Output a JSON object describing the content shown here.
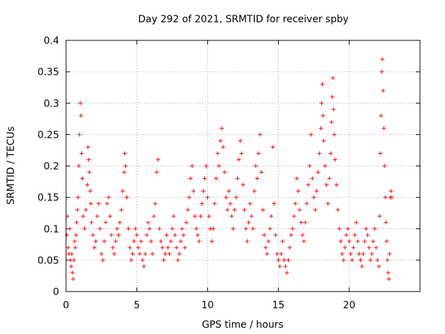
{
  "chart_data": {
    "type": "scatter",
    "title": "Day 292 of 2021, SRMTID for receiver spby",
    "xlabel": "GPS time / hours",
    "ylabel": "SRMTID / TECUs",
    "xlim": [
      0,
      25
    ],
    "ylim": [
      0,
      0.4
    ],
    "xticks": [
      0,
      5,
      10,
      15,
      20
    ],
    "xtick_labels": [
      "0",
      "5",
      "10",
      "15",
      "20"
    ],
    "yticks": [
      0,
      0.05,
      0.1,
      0.15,
      0.2,
      0.25,
      0.3,
      0.35,
      0.4
    ],
    "ytick_labels": [
      "0",
      "0.05",
      "0.1",
      "0.15",
      "0.2",
      "0.25",
      "0.3",
      "0.35",
      "0.4"
    ],
    "grid": true,
    "marker": "+",
    "color": "#ff0000",
    "series": [
      {
        "name": "SRMTID",
        "points": [
          [
            0.05,
            0.09
          ],
          [
            0.1,
            0.12
          ],
          [
            0.15,
            0.07
          ],
          [
            0.2,
            0.06
          ],
          [
            0.25,
            0.1
          ],
          [
            0.3,
            0.05
          ],
          [
            0.35,
            0.04
          ],
          [
            0.4,
            0.06
          ],
          [
            0.45,
            0.03
          ],
          [
            0.5,
            0.02
          ],
          [
            0.55,
            0.05
          ],
          [
            0.6,
            0.08
          ],
          [
            0.65,
            0.07
          ],
          [
            0.7,
            0.09
          ],
          [
            0.75,
            0.11
          ],
          [
            0.8,
            0.13
          ],
          [
            0.85,
            0.15
          ],
          [
            0.9,
            0.2
          ],
          [
            0.95,
            0.25
          ],
          [
            1.0,
            0.3
          ],
          [
            1.05,
            0.28
          ],
          [
            1.1,
            0.22
          ],
          [
            1.15,
            0.18
          ],
          [
            1.2,
            0.12
          ],
          [
            1.3,
            0.1
          ],
          [
            1.4,
            0.13
          ],
          [
            1.5,
            0.17
          ],
          [
            1.55,
            0.23
          ],
          [
            1.6,
            0.21
          ],
          [
            1.65,
            0.19
          ],
          [
            1.7,
            0.16
          ],
          [
            1.75,
            0.14
          ],
          [
            1.8,
            0.11
          ],
          [
            1.9,
            0.09
          ],
          [
            2.0,
            0.07
          ],
          [
            2.1,
            0.08
          ],
          [
            2.2,
            0.12
          ],
          [
            2.3,
            0.14
          ],
          [
            2.4,
            0.1
          ],
          [
            2.5,
            0.06
          ],
          [
            2.6,
            0.05
          ],
          [
            2.7,
            0.08
          ],
          [
            2.8,
            0.11
          ],
          [
            2.9,
            0.14
          ],
          [
            3.0,
            0.15
          ],
          [
            3.1,
            0.12
          ],
          [
            3.2,
            0.09
          ],
          [
            3.3,
            0.07
          ],
          [
            3.4,
            0.06
          ],
          [
            3.5,
            0.08
          ],
          [
            3.6,
            0.1
          ],
          [
            3.7,
            0.09
          ],
          [
            3.8,
            0.11
          ],
          [
            3.9,
            0.13
          ],
          [
            4.0,
            0.16
          ],
          [
            4.1,
            0.19
          ],
          [
            4.15,
            0.22
          ],
          [
            4.2,
            0.2
          ],
          [
            4.3,
            0.15
          ],
          [
            4.4,
            0.1
          ],
          [
            4.5,
            0.07
          ],
          [
            4.6,
            0.05
          ],
          [
            4.7,
            0.06
          ],
          [
            4.8,
            0.08
          ],
          [
            4.9,
            0.1
          ],
          [
            5.0,
            0.09
          ],
          [
            5.1,
            0.07
          ],
          [
            5.2,
            0.06
          ],
          [
            5.3,
            0.08
          ],
          [
            5.4,
            0.05
          ],
          [
            5.5,
            0.04
          ],
          [
            5.6,
            0.06
          ],
          [
            5.7,
            0.09
          ],
          [
            5.8,
            0.11
          ],
          [
            5.9,
            0.1
          ],
          [
            6.0,
            0.08
          ],
          [
            6.1,
            0.06
          ],
          [
            6.2,
            0.12
          ],
          [
            6.3,
            0.14
          ],
          [
            6.4,
            0.19
          ],
          [
            6.5,
            0.21
          ],
          [
            6.6,
            0.1
          ],
          [
            6.7,
            0.08
          ],
          [
            6.8,
            0.07
          ],
          [
            6.9,
            0.05
          ],
          [
            7.0,
            0.06
          ],
          [
            7.1,
            0.09
          ],
          [
            7.2,
            0.07
          ],
          [
            7.3,
            0.06
          ],
          [
            7.4,
            0.08
          ],
          [
            7.5,
            0.1
          ],
          [
            7.6,
            0.12
          ],
          [
            7.7,
            0.09
          ],
          [
            7.8,
            0.07
          ],
          [
            7.9,
            0.05
          ],
          [
            8.0,
            0.06
          ],
          [
            8.1,
            0.08
          ],
          [
            8.2,
            0.1
          ],
          [
            8.3,
            0.09
          ],
          [
            8.4,
            0.07
          ],
          [
            8.5,
            0.11
          ],
          [
            8.6,
            0.13
          ],
          [
            8.7,
            0.15
          ],
          [
            8.8,
            0.18
          ],
          [
            8.9,
            0.2
          ],
          [
            9.0,
            0.16
          ],
          [
            9.1,
            0.12
          ],
          [
            9.2,
            0.1
          ],
          [
            9.3,
            0.09
          ],
          [
            9.4,
            0.08
          ],
          [
            9.5,
            0.12
          ],
          [
            9.6,
            0.14
          ],
          [
            9.7,
            0.16
          ],
          [
            9.8,
            0.18
          ],
          [
            9.9,
            0.2
          ],
          [
            10.0,
            0.15
          ],
          [
            10.1,
            0.12
          ],
          [
            10.2,
            0.1
          ],
          [
            10.3,
            0.08
          ],
          [
            10.4,
            0.1
          ],
          [
            10.5,
            0.14
          ],
          [
            10.6,
            0.18
          ],
          [
            10.7,
            0.22
          ],
          [
            10.8,
            0.2
          ],
          [
            10.9,
            0.24
          ],
          [
            11.0,
            0.26
          ],
          [
            11.1,
            0.23
          ],
          [
            11.2,
            0.19
          ],
          [
            11.3,
            0.15
          ],
          [
            11.4,
            0.13
          ],
          [
            11.5,
            0.16
          ],
          [
            11.6,
            0.14
          ],
          [
            11.7,
            0.12
          ],
          [
            11.8,
            0.1
          ],
          [
            11.9,
            0.13
          ],
          [
            12.0,
            0.15
          ],
          [
            12.1,
            0.18
          ],
          [
            12.2,
            0.21
          ],
          [
            12.3,
            0.24
          ],
          [
            12.4,
            0.22
          ],
          [
            12.5,
            0.17
          ],
          [
            12.6,
            0.13
          ],
          [
            12.7,
            0.1
          ],
          [
            12.8,
            0.08
          ],
          [
            12.9,
            0.11
          ],
          [
            13.0,
            0.14
          ],
          [
            13.1,
            0.12
          ],
          [
            13.2,
            0.1
          ],
          [
            13.3,
            0.16
          ],
          [
            13.4,
            0.2
          ],
          [
            13.5,
            0.18
          ],
          [
            13.6,
            0.22
          ],
          [
            13.7,
            0.25
          ],
          [
            13.8,
            0.19
          ],
          [
            13.9,
            0.13
          ],
          [
            14.0,
            0.09
          ],
          [
            14.1,
            0.07
          ],
          [
            14.2,
            0.06
          ],
          [
            14.3,
            0.08
          ],
          [
            14.4,
            0.1
          ],
          [
            14.5,
            0.12
          ],
          [
            14.6,
            0.23
          ],
          [
            14.7,
            0.14
          ],
          [
            14.8,
            0.09
          ],
          [
            14.9,
            0.06
          ],
          [
            15.0,
            0.05
          ],
          [
            15.1,
            0.04
          ],
          [
            15.2,
            0.06
          ],
          [
            15.3,
            0.08
          ],
          [
            15.4,
            0.05
          ],
          [
            15.5,
            0.04
          ],
          [
            15.6,
            0.03
          ],
          [
            15.7,
            0.05
          ],
          [
            15.8,
            0.07
          ],
          [
            15.9,
            0.09
          ],
          [
            16.0,
            0.1
          ],
          [
            16.1,
            0.12
          ],
          [
            16.2,
            0.14
          ],
          [
            16.3,
            0.18
          ],
          [
            16.4,
            0.16
          ],
          [
            16.5,
            0.13
          ],
          [
            16.6,
            0.11
          ],
          [
            16.7,
            0.09
          ],
          [
            16.8,
            0.08
          ],
          [
            16.9,
            0.11
          ],
          [
            17.0,
            0.14
          ],
          [
            17.1,
            0.17
          ],
          [
            17.2,
            0.2
          ],
          [
            17.3,
            0.25
          ],
          [
            17.4,
            0.18
          ],
          [
            17.5,
            0.15
          ],
          [
            17.6,
            0.13
          ],
          [
            17.7,
            0.16
          ],
          [
            17.8,
            0.19
          ],
          [
            17.9,
            0.22
          ],
          [
            18.0,
            0.26
          ],
          [
            18.05,
            0.3
          ],
          [
            18.1,
            0.33
          ],
          [
            18.15,
            0.28
          ],
          [
            18.2,
            0.24
          ],
          [
            18.3,
            0.2
          ],
          [
            18.4,
            0.17
          ],
          [
            18.5,
            0.14
          ],
          [
            18.6,
            0.18
          ],
          [
            18.7,
            0.22
          ],
          [
            18.75,
            0.27
          ],
          [
            18.8,
            0.31
          ],
          [
            18.85,
            0.34
          ],
          [
            18.9,
            0.29
          ],
          [
            18.95,
            0.25
          ],
          [
            19.0,
            0.21
          ],
          [
            19.1,
            0.17
          ],
          [
            19.2,
            0.13
          ],
          [
            19.3,
            0.1
          ],
          [
            19.4,
            0.08
          ],
          [
            19.5,
            0.06
          ],
          [
            19.6,
            0.05
          ],
          [
            19.7,
            0.07
          ],
          [
            19.8,
            0.09
          ],
          [
            19.9,
            0.1
          ],
          [
            20.0,
            0.08
          ],
          [
            20.1,
            0.06
          ],
          [
            20.2,
            0.05
          ],
          [
            20.3,
            0.07
          ],
          [
            20.4,
            0.09
          ],
          [
            20.5,
            0.11
          ],
          [
            20.6,
            0.08
          ],
          [
            20.7,
            0.06
          ],
          [
            20.8,
            0.05
          ],
          [
            20.9,
            0.04
          ],
          [
            21.0,
            0.06
          ],
          [
            21.1,
            0.08
          ],
          [
            21.2,
            0.1
          ],
          [
            21.3,
            0.09
          ],
          [
            21.4,
            0.07
          ],
          [
            21.5,
            0.05
          ],
          [
            21.6,
            0.06
          ],
          [
            21.7,
            0.08
          ],
          [
            21.8,
            0.1
          ],
          [
            21.9,
            0.07
          ],
          [
            22.0,
            0.05
          ],
          [
            22.1,
            0.04
          ],
          [
            22.15,
            0.12
          ],
          [
            22.2,
            0.22
          ],
          [
            22.25,
            0.28
          ],
          [
            22.3,
            0.35
          ],
          [
            22.35,
            0.37
          ],
          [
            22.4,
            0.32
          ],
          [
            22.45,
            0.26
          ],
          [
            22.5,
            0.2
          ],
          [
            22.55,
            0.15
          ],
          [
            22.6,
            0.11
          ],
          [
            22.65,
            0.08
          ],
          [
            22.7,
            0.05
          ],
          [
            22.75,
            0.03
          ],
          [
            22.8,
            0.02
          ],
          [
            22.85,
            0.06
          ],
          [
            22.9,
            0.15
          ],
          [
            22.95,
            0.16
          ],
          [
            23.0,
            0.15
          ]
        ]
      }
    ]
  }
}
